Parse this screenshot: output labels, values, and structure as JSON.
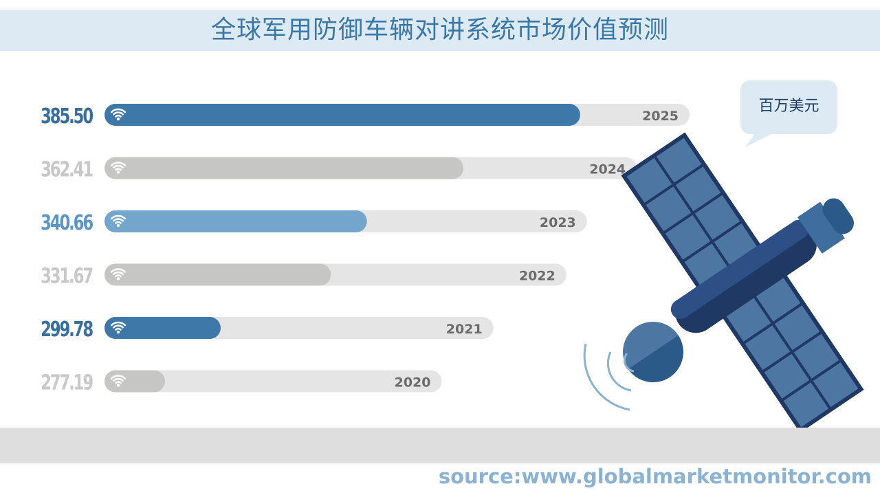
{
  "title": "全球军用防御车辆对讲系统市场价值预测",
  "unit_label": "百万美元",
  "source": "source:www.globalmarketmonitor.com",
  "colors": {
    "title_bg": "#dde9f3",
    "title_text": "#3a78a8",
    "dark_blue": "#3e78a8",
    "light_blue": "#73a5cd",
    "gray": "#c6c6c4",
    "track": "#e5e5e5",
    "year_text": "#6b6b6b"
  },
  "chart_data": {
    "type": "bar",
    "orientation": "horizontal",
    "categories": [
      "2025",
      "2024",
      "2023",
      "2022",
      "2021",
      "2020"
    ],
    "values": [
      385.5,
      362.41,
      340.66,
      331.67,
      299.78,
      277.19
    ],
    "value_labels": [
      "385.50",
      "362.41",
      "340.66",
      "331.67",
      "299.78",
      "277.19"
    ],
    "bar_styles": [
      "dark_blue",
      "gray",
      "light_blue",
      "gray",
      "dark_blue",
      "gray"
    ],
    "unit": "百万美元",
    "title": "全球军用防御车辆对讲系统市场价值预测",
    "icon": "wifi-icon"
  }
}
